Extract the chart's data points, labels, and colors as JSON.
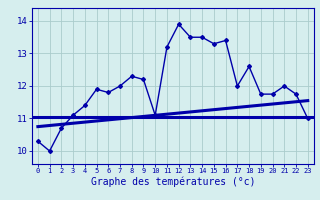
{
  "xlabel": "Graphe des températures (°c)",
  "bg_color": "#d6eeee",
  "line_color": "#0000aa",
  "grid_color": "#aacccc",
  "hours": [
    0,
    1,
    2,
    3,
    4,
    5,
    6,
    7,
    8,
    9,
    10,
    11,
    12,
    13,
    14,
    15,
    16,
    17,
    18,
    19,
    20,
    21,
    22,
    23
  ],
  "temps": [
    10.3,
    10.0,
    10.7,
    11.1,
    11.4,
    11.9,
    11.8,
    12.0,
    12.3,
    12.2,
    11.1,
    13.2,
    13.9,
    13.5,
    13.5,
    13.3,
    13.4,
    12.0,
    12.6,
    11.75,
    11.75,
    12.0,
    11.75,
    11.0
  ],
  "trend_x": [
    0,
    23
  ],
  "trend_y": [
    10.75,
    11.55
  ],
  "flat_line_y": 11.05,
  "ylim": [
    9.6,
    14.4
  ],
  "yticks": [
    10,
    11,
    12,
    13,
    14
  ],
  "xlim": [
    -0.5,
    23.5
  ]
}
